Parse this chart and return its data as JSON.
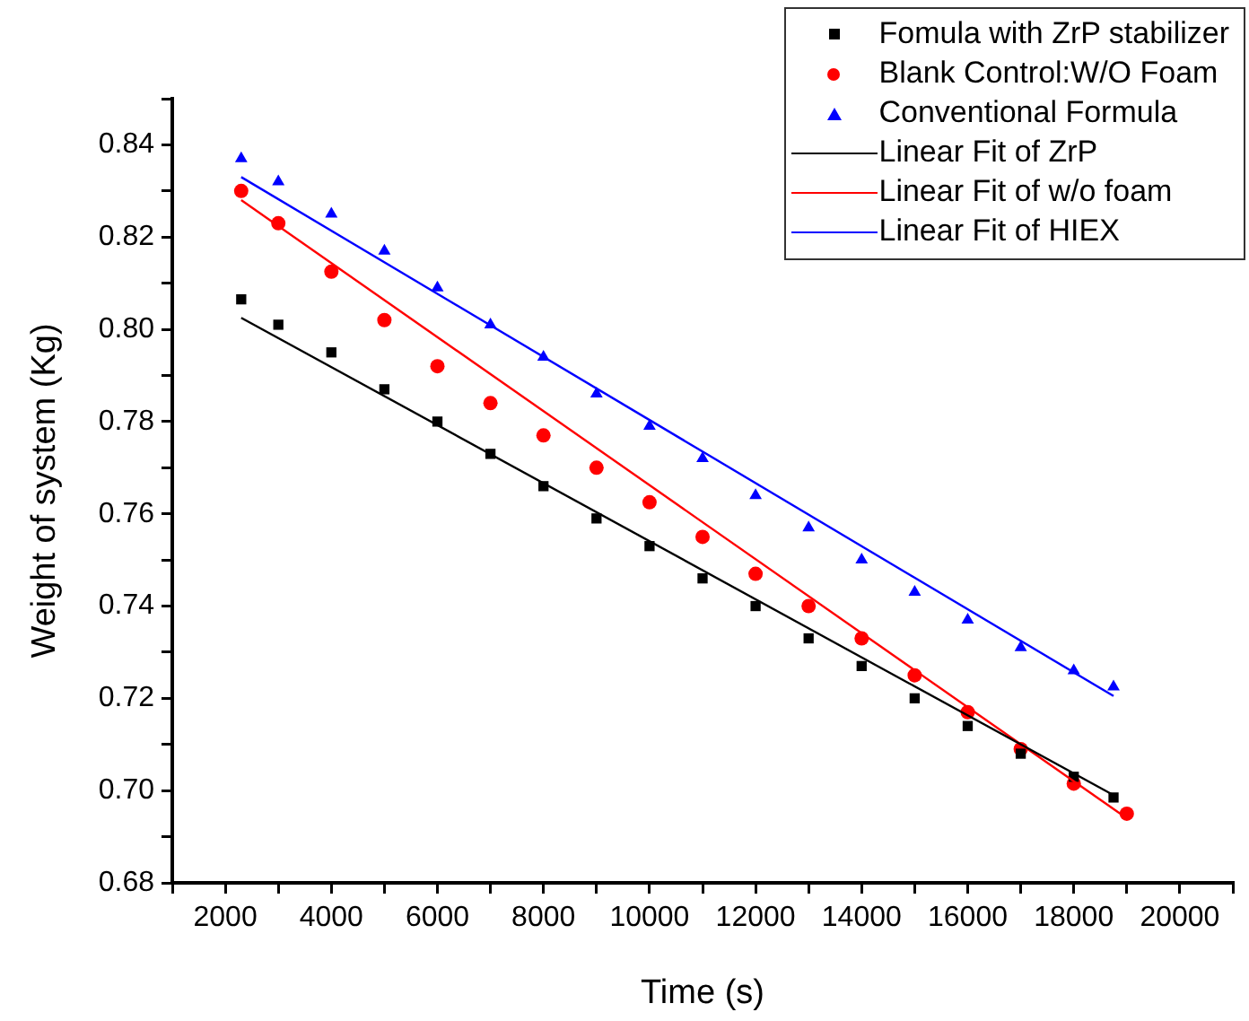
{
  "chart_data": {
    "type": "scatter",
    "xlabel": "Time (s)",
    "ylabel": "Weight of system (Kg)",
    "xlim": [
      1000,
      21000
    ],
    "xticks": [
      {
        "value": 1000,
        "label": null
      },
      2000,
      {
        "value": 3000,
        "label": null
      },
      4000,
      {
        "value": 5000,
        "label": null
      },
      6000,
      {
        "value": 7000,
        "label": null
      },
      8000,
      {
        "value": 9000,
        "label": null
      },
      10000,
      {
        "value": 11000,
        "label": null
      },
      12000,
      {
        "value": 13000,
        "label": null
      },
      14000,
      {
        "value": 15000,
        "label": null
      },
      16000,
      {
        "value": 17000,
        "label": null
      },
      18000,
      {
        "value": 19000,
        "label": null
      },
      20000,
      {
        "value": 21000,
        "label": null
      }
    ],
    "ylim": [
      0.68,
      0.85
    ],
    "yticks": [
      0.68,
      {
        "value": 0.69,
        "label": null
      },
      {
        "value": 0.7,
        "label": "0.70"
      },
      {
        "value": 0.71,
        "label": null
      },
      0.72,
      {
        "value": 0.73,
        "label": null
      },
      0.74,
      {
        "value": 0.75,
        "label": null
      },
      0.76,
      {
        "value": 0.77,
        "label": null
      },
      0.78,
      {
        "value": 0.79,
        "label": null
      },
      {
        "value": 0.8,
        "label": "0.80"
      },
      {
        "value": 0.81,
        "label": null
      },
      0.82,
      {
        "value": 0.83,
        "label": null
      },
      0.84,
      {
        "value": 0.85,
        "label": null
      }
    ],
    "grid": false,
    "legend": "top right",
    "series": [
      {
        "name": "Fomula with ZrP stabilizer",
        "marker": "square",
        "color": "#000000",
        "x": [
          2300,
          3000,
          4000,
          5000,
          6000,
          7000,
          8000,
          9000,
          10000,
          11000,
          12000,
          13000,
          14000,
          15000,
          16000,
          17000,
          18000,
          18750
        ],
        "values": [
          0.8065,
          0.801,
          0.795,
          0.787,
          0.78,
          0.773,
          0.766,
          0.759,
          0.753,
          0.746,
          0.74,
          0.733,
          0.727,
          0.72,
          0.714,
          0.708,
          0.703,
          0.6985
        ]
      },
      {
        "name": "Blank Control:W/O Foam",
        "marker": "circle",
        "color": "#ff0000",
        "x": [
          2300,
          3000,
          4000,
          5000,
          6000,
          7000,
          8000,
          9000,
          10000,
          11000,
          12000,
          13000,
          14000,
          15000,
          16000,
          17000,
          18000,
          19000
        ],
        "values": [
          0.83,
          0.823,
          0.8125,
          0.802,
          0.792,
          0.784,
          0.777,
          0.77,
          0.7625,
          0.755,
          0.747,
          0.74,
          0.733,
          0.725,
          0.717,
          0.709,
          0.7015,
          0.695
        ]
      },
      {
        "name": "Conventional Formula",
        "marker": "triangle",
        "color": "#0000ff",
        "x": [
          2300,
          3000,
          4000,
          5000,
          6000,
          7000,
          8000,
          9000,
          10000,
          11000,
          12000,
          13000,
          14000,
          15000,
          16000,
          17000,
          18000,
          18750
        ],
        "values": [
          0.837,
          0.832,
          0.825,
          0.817,
          0.809,
          0.801,
          0.794,
          0.786,
          0.779,
          0.772,
          0.764,
          0.757,
          0.75,
          0.743,
          0.737,
          0.731,
          0.726,
          0.7225
        ]
      },
      {
        "name": "Linear Fit of ZrP",
        "type": "line",
        "marker": "none",
        "color": "#000000",
        "x": [
          2300,
          18750
        ],
        "values": [
          0.8025,
          0.699
        ]
      },
      {
        "name": "Linear Fit of w/o foam",
        "type": "line",
        "marker": "none",
        "color": "#ff0000",
        "x": [
          2300,
          19000
        ],
        "values": [
          0.828,
          0.694
        ]
      },
      {
        "name": "Linear Fit of HIEX",
        "type": "line",
        "marker": "none",
        "color": "#0000ff",
        "x": [
          2300,
          18750
        ],
        "values": [
          0.833,
          0.7205
        ]
      }
    ]
  }
}
